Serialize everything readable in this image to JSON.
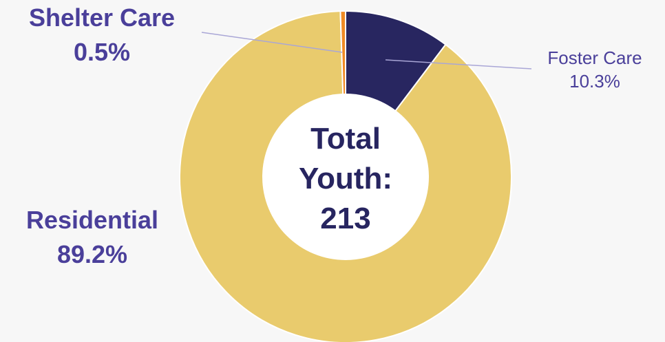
{
  "chart_data": {
    "type": "pie",
    "variant": "donut",
    "categories": [
      "Foster Care",
      "Residential",
      "Shelter Care"
    ],
    "values": [
      10.3,
      89.2,
      0.5
    ],
    "value_labels": [
      "10.3%",
      "89.2%",
      "0.5%"
    ],
    "colors": [
      "#282660",
      "#e9cb6d",
      "#f08a24"
    ],
    "center_label": [
      "Total",
      "Youth:",
      "213"
    ],
    "leader_line_color": "#a9a6d6",
    "legend": "none"
  }
}
